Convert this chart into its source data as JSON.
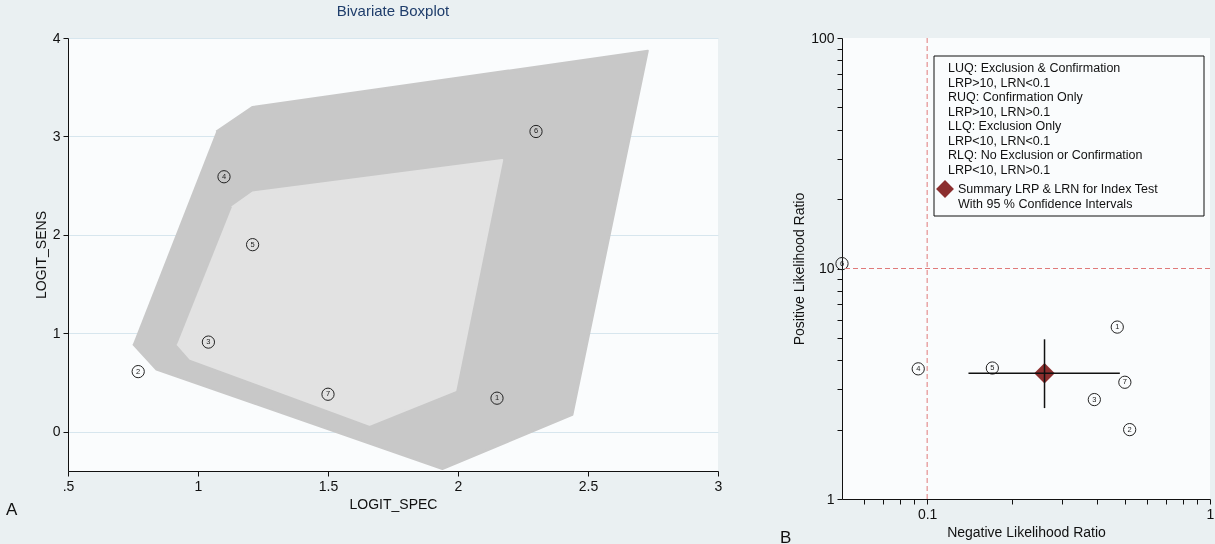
{
  "chart_data": [
    {
      "type": "scatter",
      "title": "Bivariate Boxplot",
      "xlabel": "LOGIT_SPEC",
      "ylabel": "LOGIT_SENS",
      "xlim": [
        0.5,
        3
      ],
      "xticks": [
        {
          "value": 0.5,
          "label": ".5"
        },
        1,
        1.5,
        2,
        2.5,
        3
      ],
      "ylim": [
        -0.4,
        4
      ],
      "yticks": [
        0,
        1,
        2,
        3,
        4
      ],
      "grid": "y",
      "series": [
        {
          "type": "area",
          "color": "#c8c8c8",
          "x": [
            0.75,
            0.84,
            1.94,
            2.44,
            2.73,
            1.21,
            1.07
          ],
          "values": [
            0.89,
            0.63,
            -0.38,
            0.17,
            3.87,
            3.3,
            3.05
          ]
        },
        {
          "type": "area",
          "color": "#e2e2e2",
          "x": [
            0.92,
            0.97,
            1.66,
            1.99,
            2.17,
            1.21,
            1.13
          ],
          "values": [
            0.89,
            0.74,
            0.07,
            0.42,
            2.76,
            2.43,
            2.28
          ]
        },
        {
          "marker": "circle",
          "color": "#222222",
          "x": [
            2.15,
            0.77,
            1.04,
            1.1,
            1.21,
            2.3,
            1.5
          ],
          "values": [
            0.34,
            0.61,
            0.91,
            2.59,
            1.9,
            3.05,
            0.38
          ]
        }
      ],
      "annotations": [
        "A",
        {
          "text": "1",
          "x": 2.15,
          "y": 0.34
        },
        {
          "text": "2",
          "x": 0.77,
          "y": 0.61
        },
        {
          "text": "3",
          "x": 1.04,
          "y": 0.91
        },
        {
          "text": "4",
          "x": 1.1,
          "y": 2.59
        },
        {
          "text": "5",
          "x": 1.21,
          "y": 1.9
        },
        {
          "text": "6",
          "x": 2.3,
          "y": 3.05
        },
        {
          "text": "7",
          "x": 1.5,
          "y": 0.38
        }
      ]
    },
    {
      "type": "scatter",
      "xlabel": "Negative Likelihood Ratio",
      "ylabel": "Positive Likelihood Ratio",
      "log": "xy",
      "xlim": [
        0.05,
        1
      ],
      "xticks": [
        {
          "value": 0.06,
          "label": null
        },
        {
          "value": 0.07,
          "label": null
        },
        {
          "value": 0.08,
          "label": null
        },
        {
          "value": 0.09,
          "label": null
        },
        0.1,
        {
          "value": 0.2,
          "label": null
        },
        {
          "value": 0.3,
          "label": null
        },
        {
          "value": 0.4,
          "label": null
        },
        {
          "value": 0.5,
          "label": null
        },
        {
          "value": 0.6,
          "label": null
        },
        {
          "value": 0.7,
          "label": null
        },
        {
          "value": 0.8,
          "label": null
        },
        {
          "value": 0.9,
          "label": null
        },
        1
      ],
      "ylim": [
        1,
        100
      ],
      "yticks": [
        1,
        {
          "value": 2,
          "label": null
        },
        {
          "value": 3,
          "label": null
        },
        {
          "value": 4,
          "label": null
        },
        {
          "value": 5,
          "label": null
        },
        {
          "value": 6,
          "label": null
        },
        {
          "value": 7,
          "label": null
        },
        {
          "value": 8,
          "label": null
        },
        {
          "value": 9,
          "label": null
        },
        10,
        {
          "value": 20,
          "label": null
        },
        {
          "value": 30,
          "label": null
        },
        {
          "value": 40,
          "label": null
        },
        {
          "value": 50,
          "label": null
        },
        {
          "value": 60,
          "label": null
        },
        {
          "value": 70,
          "label": null
        },
        {
          "value": 80,
          "label": null
        },
        {
          "value": 90,
          "label": null
        },
        100
      ],
      "legend": "top right",
      "ref_lines": [
        {
          "axis": "x",
          "value": 0.1,
          "color": "#e07a7a",
          "line_style": "dashed"
        },
        {
          "axis": "y",
          "value": 10,
          "color": "#e07a7a",
          "line_style": "dashed"
        }
      ],
      "series": [
        {
          "marker": "circle",
          "color": "#222222",
          "x": [
            0.47,
            0.52,
            0.39,
            0.093,
            0.17,
            0.05,
            0.5
          ],
          "values": [
            5.57,
            2.0,
            2.7,
            3.67,
            3.7,
            10.5,
            3.21
          ]
        },
        {
          "marker": "diamond",
          "name": "Summary LRP & LRN for Index Test With 95 % Confidence Intervals",
          "color": "#8b2e2e",
          "x": [
            0.26
          ],
          "values": [
            3.51
          ],
          "xerrors": [
            [
              0.14,
              0.48
            ]
          ],
          "errors": [
            [
              2.48,
              4.93
            ]
          ]
        }
      ],
      "annotations": [
        "B",
        "LUQ: Exclusion & Confirmation",
        "LRP>10, LRN<0.1",
        "RUQ: Confirmation Only",
        "LRP>10, LRN>0.1",
        "LLQ: Exclusion Only",
        "LRP<10, LRN<0.1",
        "RLQ: No Exclusion or Confirmation",
        "LRP<10, LRN>0.1",
        {
          "text": "1",
          "x": 0.47,
          "y": 5.57
        },
        {
          "text": "2",
          "x": 0.52,
          "y": 2.0
        },
        {
          "text": "3",
          "x": 0.39,
          "y": 2.7
        },
        {
          "text": "4",
          "x": 0.093,
          "y": 3.67
        },
        {
          "text": "5",
          "x": 0.17,
          "y": 3.7
        },
        {
          "text": "6",
          "x": 0.05,
          "y": 10.5
        },
        {
          "text": "7",
          "x": 0.5,
          "y": 3.21
        }
      ]
    }
  ]
}
